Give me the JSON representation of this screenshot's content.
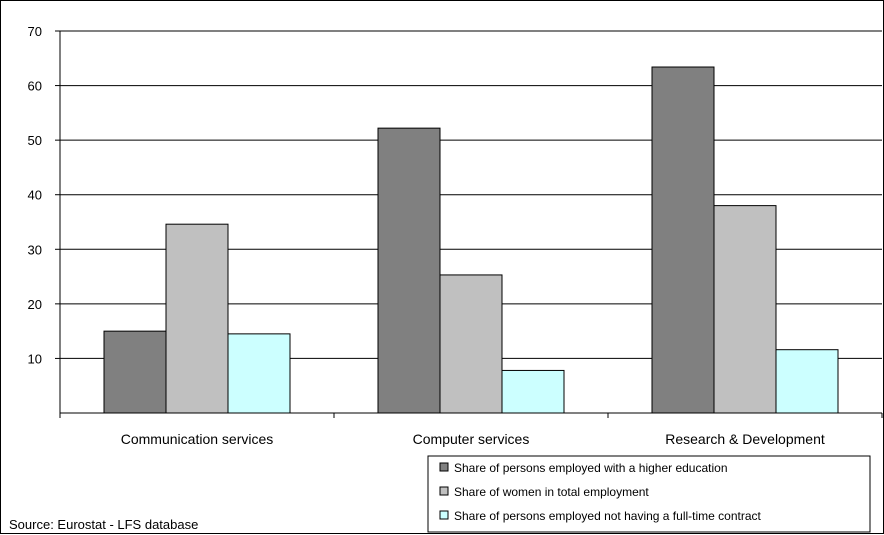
{
  "chart_data": {
    "type": "bar",
    "categories": [
      "Communication services",
      "Computer services",
      "Research & Development"
    ],
    "series": [
      {
        "name": "Share of persons employed with a higher education",
        "color": "#808080",
        "values": [
          15.0,
          52.2,
          63.4
        ]
      },
      {
        "name": "Share of women in total employment",
        "color": "#c0c0c0",
        "values": [
          34.6,
          25.3,
          38.0
        ]
      },
      {
        "name": "Share of persons employed not having a full-time contract",
        "color": "#ccffff",
        "values": [
          14.5,
          7.8,
          11.6
        ]
      }
    ],
    "yticks": [
      10,
      20,
      30,
      40,
      50,
      60,
      70
    ],
    "ylim": [
      0,
      70
    ],
    "grid": true,
    "legend": "bottom-right",
    "title": "",
    "xlabel": "",
    "ylabel": ""
  },
  "source": "Source: Eurostat - LFS database"
}
